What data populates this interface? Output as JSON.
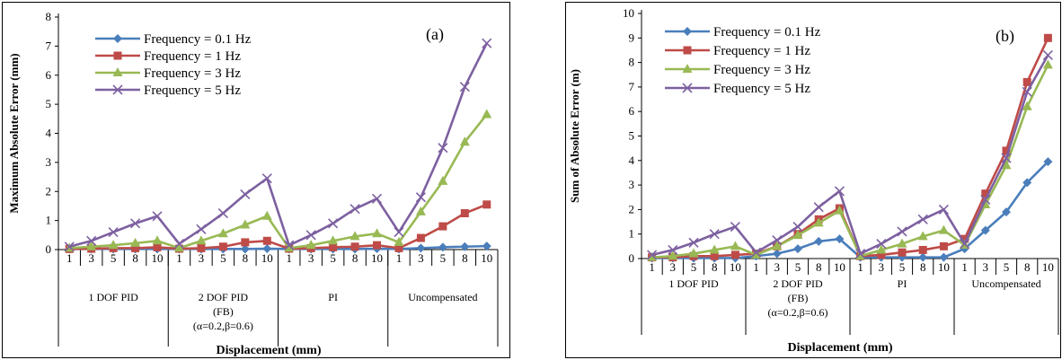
{
  "chart_data": [
    {
      "type": "line",
      "panel_label": "(a)",
      "title": "",
      "ylabel": "Maximum Absolute Error (mm)",
      "xlabel": "Displacement (mm)",
      "ylim": [
        0,
        8
      ],
      "yticks": [
        0,
        1,
        2,
        3,
        4,
        5,
        6,
        7,
        8
      ],
      "categories": [
        "1",
        "3",
        "5",
        "8",
        "10",
        "1",
        "3",
        "5",
        "8",
        "10",
        "1",
        "3",
        "5",
        "8",
        "10",
        "1",
        "3",
        "5",
        "8",
        "10"
      ],
      "groups": [
        {
          "lines": [
            "1 DOF PID"
          ]
        },
        {
          "lines": [
            "2 DOF PID",
            "(FB)",
            "(α=0.2,β=0.6)"
          ]
        },
        {
          "lines": [
            "PI"
          ]
        },
        {
          "lines": [
            "Uncompensated"
          ]
        }
      ],
      "legend_position": "top-left",
      "series": [
        {
          "name": "Frequency = 0.1 Hz",
          "color": "#4a7ebb",
          "marker": "diamond",
          "values": [
            0.02,
            0.02,
            0.02,
            0.02,
            0.02,
            0.02,
            0.02,
            0.02,
            0.02,
            0.03,
            0.02,
            0.02,
            0.02,
            0.02,
            0.03,
            0.02,
            0.05,
            0.08,
            0.1,
            0.12
          ]
        },
        {
          "name": "Frequency = 1 Hz",
          "color": "#be4b48",
          "marker": "square",
          "values": [
            0.02,
            0.03,
            0.05,
            0.05,
            0.08,
            0.03,
            0.05,
            0.1,
            0.25,
            0.3,
            0.03,
            0.05,
            0.08,
            0.1,
            0.15,
            0.05,
            0.4,
            0.8,
            1.25,
            1.55
          ]
        },
        {
          "name": "Frequency = 3 Hz",
          "color": "#98b954",
          "marker": "triangle",
          "values": [
            0.05,
            0.1,
            0.15,
            0.22,
            0.3,
            0.05,
            0.3,
            0.55,
            0.85,
            1.15,
            0.05,
            0.15,
            0.3,
            0.45,
            0.55,
            0.25,
            1.3,
            2.35,
            3.7,
            4.65
          ]
        },
        {
          "name": "Frequency = 5 Hz",
          "color": "#7d60a0",
          "marker": "x",
          "values": [
            0.1,
            0.3,
            0.6,
            0.9,
            1.15,
            0.2,
            0.7,
            1.25,
            1.9,
            2.45,
            0.15,
            0.5,
            0.9,
            1.4,
            1.75,
            0.6,
            1.8,
            3.5,
            5.6,
            7.1
          ]
        }
      ]
    },
    {
      "type": "line",
      "panel_label": "(b)",
      "title": "",
      "ylabel": "Sum of Absolute Error (m)",
      "xlabel": "Displacement (mm)",
      "ylim": [
        0,
        10
      ],
      "yticks": [
        0,
        1,
        2,
        3,
        4,
        5,
        6,
        7,
        8,
        9,
        10
      ],
      "categories": [
        "1",
        "3",
        "5",
        "8",
        "10",
        "1",
        "3",
        "5",
        "8",
        "10",
        "1",
        "3",
        "5",
        "8",
        "10",
        "1",
        "3",
        "5",
        "8",
        "10"
      ],
      "groups": [
        {
          "lines": [
            "1 DOF PID"
          ]
        },
        {
          "lines": [
            "2 DOF PID",
            "(FB)",
            "(α=0.2,β=0.6)"
          ]
        },
        {
          "lines": [
            "PI"
          ]
        },
        {
          "lines": [
            "Uncompensated"
          ]
        }
      ],
      "legend_position": "top-left",
      "series": [
        {
          "name": "Frequency = 0.1 Hz",
          "color": "#4a7ebb",
          "marker": "diamond",
          "values": [
            0.02,
            0.02,
            0.02,
            0.02,
            0.02,
            0.1,
            0.2,
            0.4,
            0.7,
            0.8,
            0.05,
            0.05,
            0.05,
            0.05,
            0.05,
            0.4,
            1.15,
            1.9,
            3.1,
            3.95
          ]
        },
        {
          "name": "Frequency = 1 Hz",
          "color": "#be4b48",
          "marker": "square",
          "values": [
            0.05,
            0.05,
            0.1,
            0.1,
            0.15,
            0.2,
            0.5,
            1.0,
            1.6,
            2.05,
            0.1,
            0.15,
            0.25,
            0.35,
            0.5,
            0.8,
            2.65,
            4.4,
            7.2,
            9.0
          ]
        },
        {
          "name": "Frequency = 3 Hz",
          "color": "#98b954",
          "marker": "triangle",
          "values": [
            0.05,
            0.1,
            0.2,
            0.35,
            0.5,
            0.15,
            0.5,
            0.95,
            1.45,
            1.95,
            0.1,
            0.35,
            0.6,
            0.9,
            1.15,
            0.55,
            2.2,
            3.8,
            6.2,
            7.9
          ]
        },
        {
          "name": "Frequency = 5 Hz",
          "color": "#7d60a0",
          "marker": "x",
          "values": [
            0.15,
            0.35,
            0.65,
            1.0,
            1.3,
            0.25,
            0.75,
            1.3,
            2.1,
            2.75,
            0.2,
            0.6,
            1.1,
            1.6,
            2.0,
            0.6,
            2.4,
            4.1,
            6.8,
            8.3
          ]
        }
      ]
    }
  ]
}
